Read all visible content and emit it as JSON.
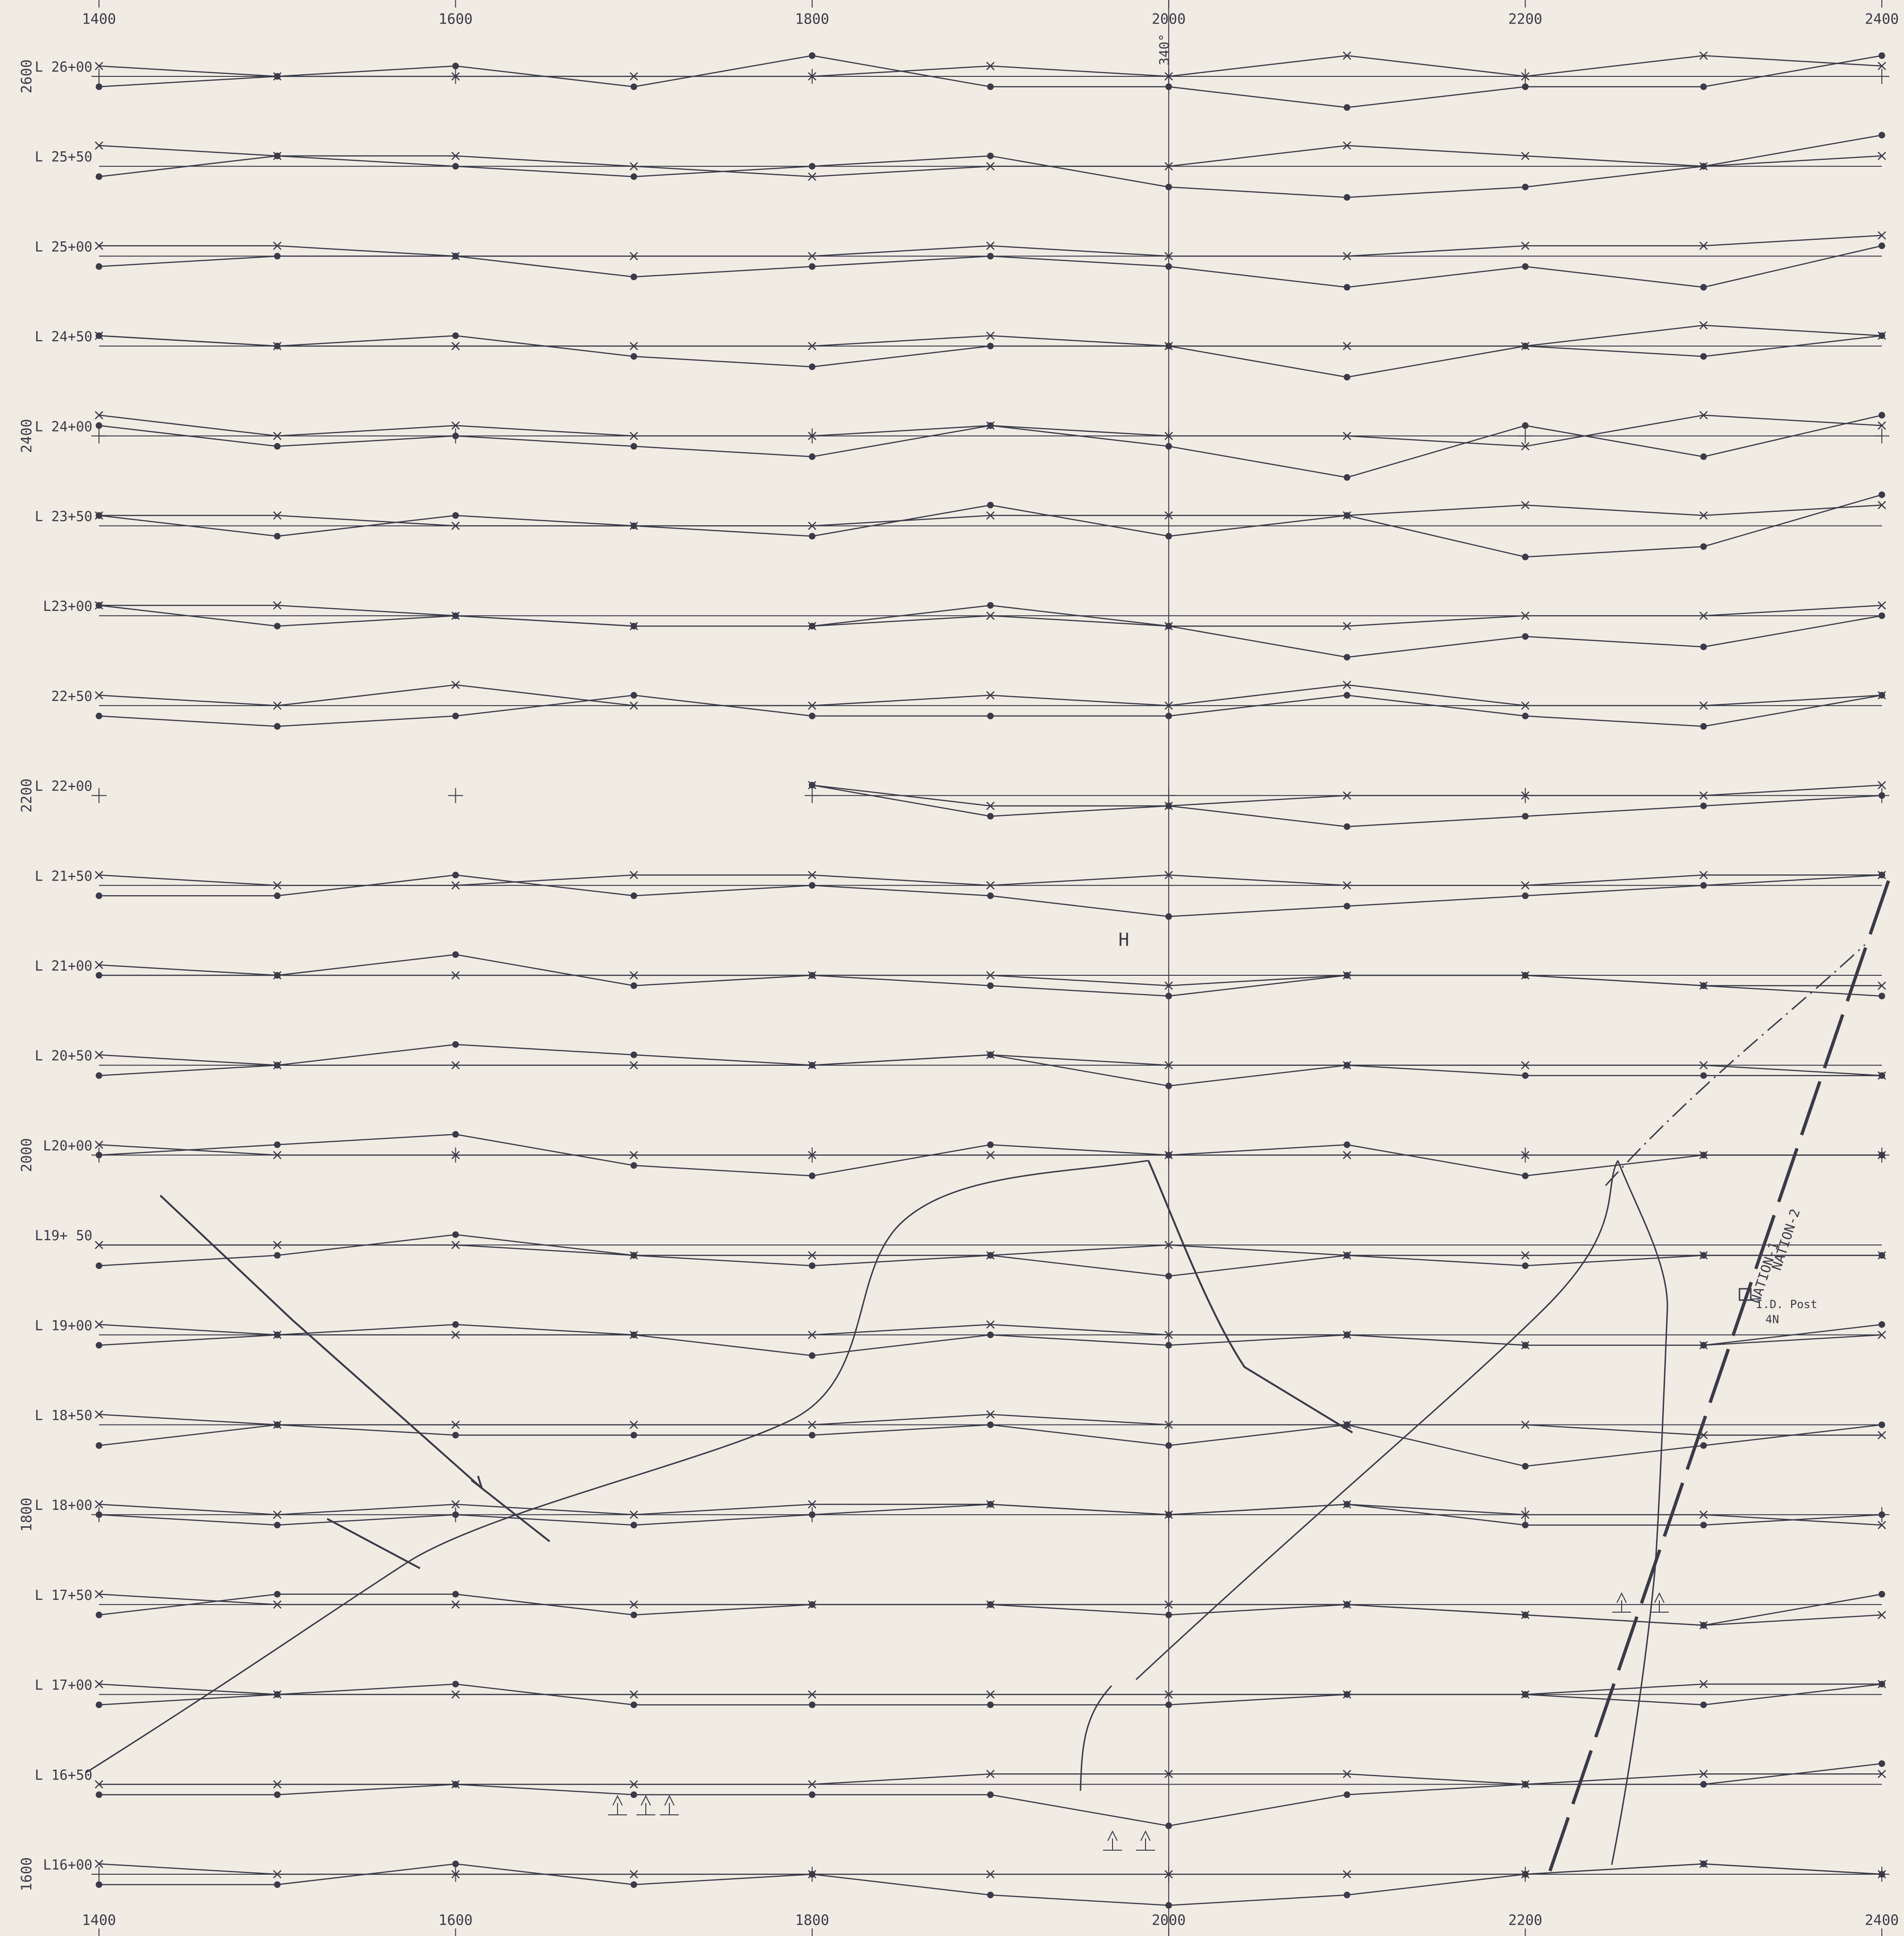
{
  "map": {
    "eastings": [
      1400,
      1600,
      1800,
      2000,
      2200,
      2400
    ],
    "northings": [
      2600,
      2400,
      2200,
      2000,
      1800,
      1600
    ],
    "stations": [
      1400,
      1500,
      1600,
      1700,
      1800,
      1900,
      2000,
      2100,
      2200,
      2300,
      2400
    ],
    "bearing": "340°",
    "anomaly_label": "H",
    "claims": [
      "NATION-1",
      "NATION-2"
    ],
    "post": {
      "label": "I.D. Post",
      "number": "4N"
    },
    "lines": [
      {
        "label": "L 26+00",
        "dots": [
          -1,
          0,
          1,
          -1,
          2,
          -1,
          -1,
          -3,
          -1,
          -1,
          2
        ],
        "crosses": [
          1,
          0,
          0,
          0,
          0,
          1,
          0,
          2,
          0,
          2,
          1
        ]
      },
      {
        "label": "L 25+50",
        "dots": [
          -1,
          1,
          0,
          -1,
          0,
          1,
          -2,
          -3,
          -2,
          0,
          3
        ],
        "crosses": [
          2,
          1,
          1,
          0,
          -1,
          0,
          0,
          2,
          1,
          0,
          1
        ]
      },
      {
        "label": "L 25+00",
        "dots": [
          -1,
          0,
          0,
          -2,
          -1,
          0,
          -1,
          -3,
          -1,
          -3,
          1
        ],
        "crosses": [
          1,
          1,
          0,
          0,
          0,
          1,
          0,
          0,
          1,
          1,
          2
        ]
      },
      {
        "label": "L 24+50",
        "dots": [
          1,
          0,
          1,
          -1,
          -2,
          0,
          0,
          -3,
          0,
          -1,
          1
        ],
        "crosses": [
          1,
          0,
          0,
          0,
          0,
          1,
          0,
          0,
          0,
          2,
          1
        ]
      },
      {
        "label": "L 24+00",
        "dots": [
          1,
          -1,
          0,
          -1,
          -2,
          1,
          -1,
          -4,
          1,
          -2,
          2
        ],
        "crosses": [
          2,
          0,
          1,
          0,
          0,
          1,
          0,
          0,
          -1,
          2,
          1
        ]
      },
      {
        "label": "L 23+50",
        "dots": [
          1,
          -1,
          1,
          0,
          -1,
          2,
          -1,
          1,
          -3,
          -2,
          3
        ],
        "crosses": [
          1,
          1,
          0,
          0,
          0,
          1,
          1,
          1,
          2,
          1,
          2
        ]
      },
      {
        "label": "L23+00",
        "dots": [
          1,
          -1,
          0,
          -1,
          -1,
          1,
          -1,
          -4,
          -2,
          -3,
          0
        ],
        "crosses": [
          1,
          1,
          0,
          -1,
          -1,
          0,
          -1,
          -1,
          0,
          0,
          1
        ]
      },
      {
        "label": "22+50",
        "dots": [
          -1,
          -2,
          -1,
          1,
          -1,
          -1,
          -1,
          1,
          -1,
          -2,
          1
        ],
        "crosses": [
          1,
          0,
          2,
          0,
          0,
          1,
          0,
          2,
          0,
          0,
          1
        ]
      },
      {
        "label": "L 22+00",
        "dots": [
          null,
          null,
          null,
          null,
          1,
          -2,
          -1,
          -3,
          -2,
          -1,
          0
        ],
        "crosses": [
          null,
          null,
          null,
          null,
          1,
          -1,
          -1,
          0,
          0,
          0,
          1
        ]
      },
      {
        "label": "L  21+50",
        "dots": [
          -1,
          -1,
          1,
          -1,
          0,
          -1,
          -3,
          -2,
          -1,
          0,
          1
        ],
        "crosses": [
          1,
          0,
          0,
          1,
          1,
          0,
          1,
          0,
          0,
          1,
          1
        ]
      },
      {
        "label": "L 21+00",
        "dots": [
          0,
          0,
          2,
          -1,
          0,
          -1,
          -2,
          0,
          0,
          -1,
          -2
        ],
        "crosses": [
          1,
          0,
          0,
          0,
          0,
          0,
          -1,
          0,
          0,
          -1,
          -1
        ]
      },
      {
        "label": "L 20+50",
        "dots": [
          -1,
          0,
          2,
          1,
          0,
          1,
          -2,
          0,
          -1,
          -1,
          -1
        ],
        "crosses": [
          1,
          0,
          0,
          0,
          0,
          1,
          0,
          0,
          0,
          0,
          -1
        ]
      },
      {
        "label": "L20+00",
        "dots": [
          0,
          1,
          2,
          -1,
          -2,
          1,
          0,
          1,
          -2,
          0,
          0
        ],
        "crosses": [
          1,
          0,
          0,
          0,
          0,
          0,
          0,
          0,
          0,
          0,
          0
        ]
      },
      {
        "label": "L19+ 50",
        "dots": [
          -2,
          -1,
          1,
          -1,
          -2,
          -1,
          -3,
          -1,
          -2,
          -1,
          -1
        ],
        "crosses": [
          0,
          0,
          0,
          -1,
          -1,
          -1,
          0,
          -1,
          -1,
          -1,
          -1
        ]
      },
      {
        "label": "L 19+00",
        "dots": [
          -1,
          0,
          1,
          0,
          -2,
          0,
          -1,
          0,
          -1,
          -1,
          1
        ],
        "crosses": [
          1,
          0,
          0,
          0,
          0,
          1,
          0,
          0,
          -1,
          -1,
          0
        ]
      },
      {
        "label": "L 18+50",
        "dots": [
          -2,
          0,
          -1,
          -1,
          -1,
          0,
          -2,
          0,
          -4,
          -2,
          0
        ],
        "crosses": [
          1,
          0,
          0,
          0,
          0,
          1,
          0,
          0,
          0,
          -1,
          -1
        ]
      },
      {
        "label": "L 18+00",
        "dots": [
          0,
          -1,
          0,
          -1,
          0,
          1,
          0,
          1,
          -1,
          -1,
          0
        ],
        "crosses": [
          1,
          0,
          1,
          0,
          1,
          1,
          0,
          1,
          0,
          0,
          -1
        ]
      },
      {
        "label": "L 17+50",
        "dots": [
          -1,
          1,
          1,
          -1,
          0,
          0,
          -1,
          0,
          -1,
          -2,
          1
        ],
        "crosses": [
          1,
          0,
          0,
          0,
          0,
          0,
          0,
          0,
          -1,
          -2,
          -1
        ]
      },
      {
        "label": "L 17+00",
        "dots": [
          -1,
          0,
          1,
          -1,
          -1,
          -1,
          -1,
          0,
          0,
          -1,
          1
        ],
        "crosses": [
          1,
          0,
          0,
          0,
          0,
          0,
          0,
          0,
          0,
          1,
          1
        ]
      },
      {
        "label": "L 16+50",
        "dots": [
          -1,
          -1,
          0,
          -1,
          -1,
          -1,
          -4,
          -1,
          0,
          0,
          2
        ],
        "crosses": [
          0,
          0,
          0,
          0,
          0,
          1,
          1,
          1,
          0,
          1,
          1
        ]
      },
      {
        "label": "L16+00",
        "dots": [
          -1,
          -1,
          1,
          -1,
          0,
          -2,
          -3,
          -2,
          0,
          1,
          0
        ],
        "crosses": [
          1,
          0,
          0,
          0,
          0,
          0,
          0,
          0,
          0,
          1,
          0
        ]
      }
    ]
  }
}
